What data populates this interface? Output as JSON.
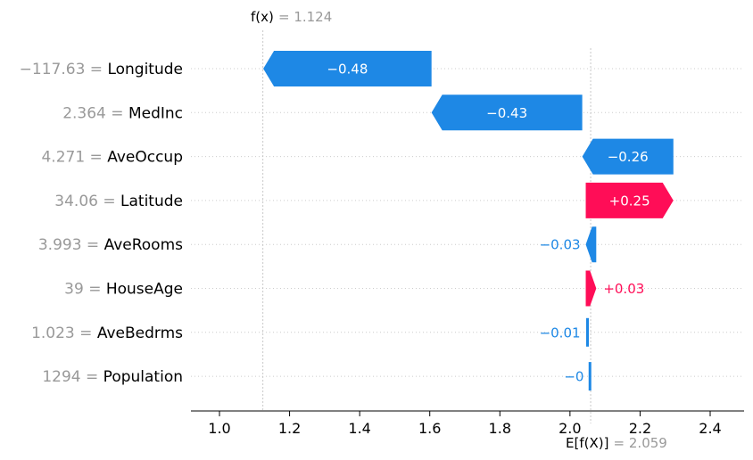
{
  "chart_data": {
    "type": "waterfall",
    "fx": {
      "name": "f(x)",
      "value": 1.124,
      "value_text": "1.124"
    },
    "base": {
      "name": "E[f(X)]",
      "value": 2.059,
      "value_text": "2.059"
    },
    "features": [
      {
        "value_text": "−117.63",
        "name": "Longitude",
        "shap": -0.48,
        "label": "−0.48"
      },
      {
        "value_text": "2.364",
        "name": "MedInc",
        "shap": -0.43,
        "label": "−0.43"
      },
      {
        "value_text": "4.271",
        "name": "AveOccup",
        "shap": -0.26,
        "label": "−0.26"
      },
      {
        "value_text": "34.06",
        "name": "Latitude",
        "shap": 0.25,
        "label": "+0.25"
      },
      {
        "value_text": "3.993",
        "name": "AveRooms",
        "shap": -0.03,
        "label": "−0.03"
      },
      {
        "value_text": "39",
        "name": "HouseAge",
        "shap": 0.03,
        "label": "+0.03"
      },
      {
        "value_text": "1.023",
        "name": "AveBedrms",
        "shap": -0.01,
        "label": "−0.01"
      },
      {
        "value_text": "1294",
        "name": "Population",
        "shap": -0.004,
        "label": "−0"
      }
    ],
    "xlim": [
      0.92,
      2.5
    ],
    "xticks": [
      "1.0",
      "1.2",
      "1.4",
      "1.6",
      "1.8",
      "2.0",
      "2.2",
      "2.4"
    ],
    "colors": {
      "positive": "#ff0d57",
      "negative": "#1e88e5",
      "grid": "#cccccc",
      "marker": "#bbbbbb"
    }
  }
}
